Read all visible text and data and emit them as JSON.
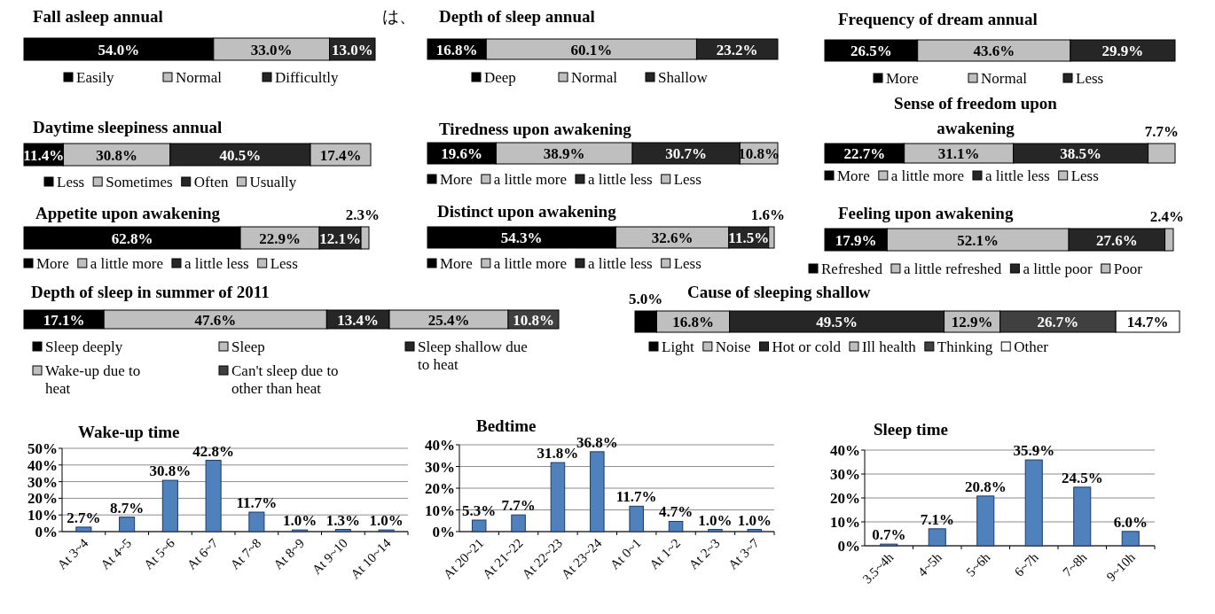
{
  "chart_data": [
    {
      "type": "bar",
      "stacked": true,
      "orientation": "horizontal",
      "legend": "bottom",
      "title": "Fall asleep annual",
      "annotations": [
        "は、"
      ],
      "categories": [
        null
      ],
      "series": [
        {
          "name": "Easily",
          "color": "#000000",
          "values": [
            54.0
          ],
          "value_labels": [
            "54.0%"
          ]
        },
        {
          "name": "Normal",
          "color": "#bfbfbf",
          "values": [
            33.0
          ],
          "value_labels": [
            "33.0%"
          ]
        },
        {
          "name": "Difficultly",
          "color": "#262626",
          "values": [
            13.0
          ],
          "value_labels": [
            "13.0%"
          ]
        }
      ]
    },
    {
      "type": "bar",
      "stacked": true,
      "orientation": "horizontal",
      "legend": "bottom",
      "title": "Depth of sleep annual",
      "categories": [
        null
      ],
      "series": [
        {
          "name": "Deep",
          "color": "#000000",
          "values": [
            16.8
          ],
          "value_labels": [
            "16.8%"
          ]
        },
        {
          "name": "Normal",
          "color": "#bfbfbf",
          "values": [
            60.1
          ],
          "value_labels": [
            "60.1%"
          ]
        },
        {
          "name": "Shallow",
          "color": "#262626",
          "values": [
            23.2
          ],
          "value_labels": [
            "23.2%"
          ]
        }
      ]
    },
    {
      "type": "bar",
      "stacked": true,
      "orientation": "horizontal",
      "legend": "bottom",
      "title": "Frequency of dream annual",
      "categories": [
        null
      ],
      "series": [
        {
          "name": "More",
          "color": "#000000",
          "values": [
            26.5
          ],
          "value_labels": [
            "26.5%"
          ]
        },
        {
          "name": "Normal",
          "color": "#bfbfbf",
          "values": [
            43.6
          ],
          "value_labels": [
            "43.6%"
          ]
        },
        {
          "name": "Less",
          "color": "#262626",
          "values": [
            29.9
          ],
          "value_labels": [
            "29.9%"
          ]
        }
      ]
    },
    {
      "type": "bar",
      "stacked": true,
      "orientation": "horizontal",
      "legend": "bottom",
      "title": "Daytime sleepiness annual",
      "categories": [
        null
      ],
      "series": [
        {
          "name": "Less",
          "color": "#000000",
          "values": [
            11.4
          ],
          "value_labels": [
            "11.4%"
          ]
        },
        {
          "name": "Sometimes",
          "color": "#bfbfbf",
          "values": [
            30.8
          ],
          "value_labels": [
            "30.8%"
          ]
        },
        {
          "name": "Often",
          "color": "#262626",
          "values": [
            40.5
          ],
          "value_labels": [
            "40.5%"
          ]
        },
        {
          "name": "Usually",
          "color": "#bfbfbf",
          "values": [
            17.4
          ],
          "value_labels": [
            "17.4%"
          ]
        }
      ]
    },
    {
      "type": "bar",
      "stacked": true,
      "orientation": "horizontal",
      "legend": "bottom",
      "title": "Tiredness upon awakening",
      "categories": [
        null
      ],
      "series": [
        {
          "name": "More",
          "color": "#000000",
          "values": [
            19.6
          ],
          "value_labels": [
            "19.6%"
          ]
        },
        {
          "name": "a little more",
          "color": "#bfbfbf",
          "values": [
            38.9
          ],
          "value_labels": [
            "38.9%"
          ]
        },
        {
          "name": "a little less",
          "color": "#262626",
          "values": [
            30.7
          ],
          "value_labels": [
            "30.7%"
          ]
        },
        {
          "name": "Less",
          "color": "#bfbfbf",
          "values": [
            10.8
          ],
          "value_labels": [
            "10.8%"
          ]
        }
      ]
    },
    {
      "type": "bar",
      "stacked": true,
      "orientation": "horizontal",
      "legend": "bottom",
      "title": "Sense of freedom upon awakening",
      "categories": [
        null
      ],
      "series": [
        {
          "name": "More",
          "color": "#000000",
          "values": [
            22.7
          ],
          "value_labels": [
            "22.7%"
          ]
        },
        {
          "name": "a little more",
          "color": "#bfbfbf",
          "values": [
            31.1
          ],
          "value_labels": [
            "31.1%"
          ]
        },
        {
          "name": "a little less",
          "color": "#262626",
          "values": [
            38.5
          ],
          "value_labels": [
            "38.5%"
          ]
        },
        {
          "name": "Less",
          "color": "#bfbfbf",
          "values": [
            7.7
          ],
          "value_labels": [
            "7.7%"
          ]
        }
      ]
    },
    {
      "type": "bar",
      "stacked": true,
      "orientation": "horizontal",
      "legend": "bottom",
      "title": "Appetite upon awakening",
      "categories": [
        null
      ],
      "series": [
        {
          "name": "More",
          "color": "#000000",
          "values": [
            62.8
          ],
          "value_labels": [
            "62.8%"
          ]
        },
        {
          "name": "a little more",
          "color": "#bfbfbf",
          "values": [
            22.9
          ],
          "value_labels": [
            "22.9%"
          ]
        },
        {
          "name": "a little less",
          "color": "#262626",
          "values": [
            12.1
          ],
          "value_labels": [
            "12.1%"
          ]
        },
        {
          "name": "Less",
          "color": "#bfbfbf",
          "values": [
            2.3
          ],
          "value_labels": [
            "2.3%"
          ]
        }
      ]
    },
    {
      "type": "bar",
      "stacked": true,
      "orientation": "horizontal",
      "legend": "bottom",
      "title": "Distinct  upon awakening",
      "categories": [
        null
      ],
      "series": [
        {
          "name": "More",
          "color": "#000000",
          "values": [
            54.3
          ],
          "value_labels": [
            "54.3%"
          ]
        },
        {
          "name": "a little more",
          "color": "#bfbfbf",
          "values": [
            32.6
          ],
          "value_labels": [
            "32.6%"
          ]
        },
        {
          "name": "a little less",
          "color": "#262626",
          "values": [
            11.5
          ],
          "value_labels": [
            "11.5%"
          ]
        },
        {
          "name": "Less",
          "color": "#bfbfbf",
          "values": [
            1.6
          ],
          "value_labels": [
            "1.6%"
          ]
        }
      ]
    },
    {
      "type": "bar",
      "stacked": true,
      "orientation": "horizontal",
      "legend": "bottom",
      "title": "Feeling upon awakening",
      "categories": [
        null
      ],
      "series": [
        {
          "name": "Refreshed",
          "color": "#000000",
          "values": [
            17.9
          ],
          "value_labels": [
            "17.9%"
          ]
        },
        {
          "name": "a little refreshed",
          "color": "#bfbfbf",
          "values": [
            52.1
          ],
          "value_labels": [
            "52.1%"
          ]
        },
        {
          "name": "a little poor",
          "color": "#262626",
          "values": [
            27.6
          ],
          "value_labels": [
            "27.6%"
          ]
        },
        {
          "name": "Poor",
          "color": "#bfbfbf",
          "values": [
            2.4
          ],
          "value_labels": [
            "2.4%"
          ]
        }
      ]
    },
    {
      "type": "bar",
      "stacked": true,
      "orientation": "horizontal",
      "legend": "bottom",
      "title": "Depth of sleep in summer of 2011",
      "categories": [
        null
      ],
      "series": [
        {
          "name": "Sleep deeply",
          "color": "#000000",
          "values": [
            17.1
          ],
          "value_labels": [
            "17.1%"
          ]
        },
        {
          "name": "Sleep",
          "color": "#bfbfbf",
          "values": [
            47.6
          ],
          "value_labels": [
            "47.6%"
          ]
        },
        {
          "name": "Sleep shallow due to heat",
          "color": "#262626",
          "values": [
            13.4
          ],
          "value_labels": [
            "13.4%"
          ]
        },
        {
          "name": "Wake-up due to heat",
          "color": "#bfbfbf",
          "values": [
            25.4
          ],
          "value_labels": [
            "25.4%"
          ]
        },
        {
          "name": "Can't sleep due to other than heat",
          "color": "#404040",
          "values": [
            10.8
          ],
          "value_labels": [
            "10.8%"
          ]
        }
      ]
    },
    {
      "type": "bar",
      "stacked": true,
      "orientation": "horizontal",
      "legend": "bottom",
      "title": "Cause of sleeping shallow",
      "categories": [
        null
      ],
      "series": [
        {
          "name": "Light",
          "color": "#000000",
          "values": [
            5.0
          ],
          "value_labels": [
            "5.0%"
          ]
        },
        {
          "name": "Noise",
          "color": "#bfbfbf",
          "values": [
            16.8
          ],
          "value_labels": [
            "16.8%"
          ]
        },
        {
          "name": "Hot or cold",
          "color": "#262626",
          "values": [
            49.5
          ],
          "value_labels": [
            "49.5%"
          ]
        },
        {
          "name": "Ill health",
          "color": "#bfbfbf",
          "values": [
            12.9
          ],
          "value_labels": [
            "12.9%"
          ]
        },
        {
          "name": "Thinking",
          "color": "#404040",
          "values": [
            26.7
          ],
          "value_labels": [
            "26.7%"
          ]
        },
        {
          "name": "Other",
          "color": "#ffffff",
          "values": [
            14.7
          ],
          "value_labels": [
            "14.7%"
          ]
        }
      ]
    },
    {
      "type": "bar",
      "title": "Wake-up time",
      "grid": "y",
      "color": "#4f81bd",
      "categories": [
        "At 3~4",
        "At 4~5",
        "At 5~6",
        "At 6~7",
        "At 7~8",
        "At 8~9",
        "At 9~10",
        "At 10~14"
      ],
      "values": [
        2.7,
        8.7,
        30.8,
        42.8,
        11.7,
        1.0,
        1.3,
        1.0
      ],
      "value_labels": [
        "2.7%",
        "8.7%",
        "30.8%",
        "42.8%",
        "11.7%",
        "1.0%",
        "1.3%",
        "1.0%"
      ],
      "ylim": [
        0,
        50
      ],
      "yticks": [
        {
          "value": 0,
          "label": "0%"
        },
        {
          "value": 10,
          "label": "10%"
        },
        {
          "value": 20,
          "label": "20%"
        },
        {
          "value": 30,
          "label": "30%"
        },
        {
          "value": 40,
          "label": "40%"
        },
        {
          "value": 50,
          "label": "50%"
        }
      ]
    },
    {
      "type": "bar",
      "title": "Bedtime",
      "grid": "y",
      "color": "#4f81bd",
      "categories": [
        "At 20~21",
        "At 21~22",
        "At 22~23",
        "At 23~24",
        "At 0~1",
        "At 1~2",
        "At 2~3",
        "At 3~7"
      ],
      "values": [
        5.3,
        7.7,
        31.8,
        36.8,
        11.7,
        4.7,
        1.0,
        1.0
      ],
      "value_labels": [
        "5.3%",
        "7.7%",
        "31.8%",
        "36.8%",
        "11.7%",
        "4.7%",
        "1.0%",
        "1.0%"
      ],
      "ylim": [
        0,
        40
      ],
      "yticks": [
        {
          "value": 0,
          "label": "0%"
        },
        {
          "value": 10,
          "label": "10%"
        },
        {
          "value": 20,
          "label": "20%"
        },
        {
          "value": 30,
          "label": "30%"
        },
        {
          "value": 40,
          "label": "40%"
        }
      ]
    },
    {
      "type": "bar",
      "title": "Sleep time",
      "grid": "y",
      "color": "#4f81bd",
      "categories": [
        "3.5~4h",
        "4~5h",
        "5~6h",
        "6~7h",
        "7~8h",
        "9~10h"
      ],
      "values": [
        0.7,
        7.1,
        20.8,
        35.9,
        24.5,
        6.0
      ],
      "value_labels": [
        "0.7%",
        "7.1%",
        "20.8%",
        "35.9%",
        "24.5%",
        "6.0%"
      ],
      "ylim": [
        0,
        40
      ],
      "yticks": [
        {
          "value": 0,
          "label": "0%"
        },
        {
          "value": 10,
          "label": "10%"
        },
        {
          "value": 20,
          "label": "20%"
        },
        {
          "value": 30,
          "label": "30%"
        },
        {
          "value": 40,
          "label": "40%"
        }
      ]
    }
  ]
}
